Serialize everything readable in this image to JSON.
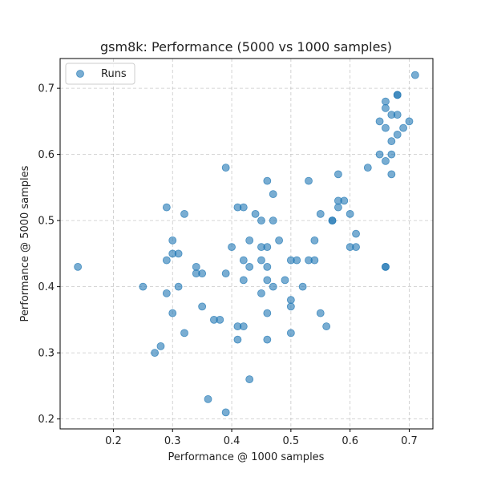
{
  "chart_data": {
    "type": "scatter",
    "title": "gsm8k: Performance (5000 vs 1000 samples)",
    "xlabel": "Performance @ 1000 samples",
    "ylabel": "Performance @ 5000 samples",
    "xlim": [
      0.11,
      0.74
    ],
    "ylim": [
      0.185,
      0.745
    ],
    "xticks": [
      0.2,
      0.3,
      0.4,
      0.5,
      0.6,
      0.7
    ],
    "yticks": [
      0.2,
      0.3,
      0.4,
      0.5,
      0.6,
      0.7
    ],
    "xtick_labels": [
      "0.2",
      "0.3",
      "0.4",
      "0.5",
      "0.6",
      "0.7"
    ],
    "ytick_labels": [
      "0.2",
      "0.3",
      "0.4",
      "0.5",
      "0.6",
      "0.7"
    ],
    "grid": true,
    "legend": {
      "position": "top-left",
      "entries": [
        "Runs"
      ]
    },
    "marker_color": "#1f77b4",
    "series": [
      {
        "name": "Runs",
        "points": [
          [
            0.14,
            0.43
          ],
          [
            0.25,
            0.4
          ],
          [
            0.27,
            0.3
          ],
          [
            0.28,
            0.31
          ],
          [
            0.29,
            0.52
          ],
          [
            0.29,
            0.44
          ],
          [
            0.29,
            0.39
          ],
          [
            0.3,
            0.47
          ],
          [
            0.3,
            0.45
          ],
          [
            0.3,
            0.36
          ],
          [
            0.31,
            0.45
          ],
          [
            0.31,
            0.4
          ],
          [
            0.32,
            0.51
          ],
          [
            0.32,
            0.33
          ],
          [
            0.34,
            0.43
          ],
          [
            0.34,
            0.42
          ],
          [
            0.35,
            0.42
          ],
          [
            0.35,
            0.37
          ],
          [
            0.36,
            0.23
          ],
          [
            0.37,
            0.35
          ],
          [
            0.38,
            0.35
          ],
          [
            0.39,
            0.58
          ],
          [
            0.39,
            0.42
          ],
          [
            0.39,
            0.21
          ],
          [
            0.4,
            0.46
          ],
          [
            0.41,
            0.52
          ],
          [
            0.41,
            0.34
          ],
          [
            0.41,
            0.32
          ],
          [
            0.42,
            0.52
          ],
          [
            0.42,
            0.44
          ],
          [
            0.42,
            0.41
          ],
          [
            0.42,
            0.34
          ],
          [
            0.43,
            0.47
          ],
          [
            0.43,
            0.43
          ],
          [
            0.43,
            0.26
          ],
          [
            0.44,
            0.51
          ],
          [
            0.45,
            0.5
          ],
          [
            0.45,
            0.46
          ],
          [
            0.45,
            0.44
          ],
          [
            0.45,
            0.39
          ],
          [
            0.46,
            0.56
          ],
          [
            0.46,
            0.46
          ],
          [
            0.46,
            0.43
          ],
          [
            0.46,
            0.41
          ],
          [
            0.46,
            0.36
          ],
          [
            0.46,
            0.32
          ],
          [
            0.47,
            0.54
          ],
          [
            0.47,
            0.5
          ],
          [
            0.47,
            0.4
          ],
          [
            0.48,
            0.47
          ],
          [
            0.49,
            0.41
          ],
          [
            0.5,
            0.44
          ],
          [
            0.5,
            0.38
          ],
          [
            0.5,
            0.37
          ],
          [
            0.5,
            0.33
          ],
          [
            0.51,
            0.44
          ],
          [
            0.52,
            0.4
          ],
          [
            0.53,
            0.56
          ],
          [
            0.53,
            0.44
          ],
          [
            0.54,
            0.47
          ],
          [
            0.54,
            0.44
          ],
          [
            0.55,
            0.51
          ],
          [
            0.55,
            0.36
          ],
          [
            0.56,
            0.34
          ],
          [
            0.57,
            0.5
          ],
          [
            0.57,
            0.5
          ],
          [
            0.58,
            0.57
          ],
          [
            0.58,
            0.53
          ],
          [
            0.58,
            0.52
          ],
          [
            0.59,
            0.53
          ],
          [
            0.6,
            0.51
          ],
          [
            0.6,
            0.46
          ],
          [
            0.61,
            0.48
          ],
          [
            0.61,
            0.46
          ],
          [
            0.63,
            0.58
          ],
          [
            0.65,
            0.65
          ],
          [
            0.65,
            0.6
          ],
          [
            0.66,
            0.68
          ],
          [
            0.66,
            0.67
          ],
          [
            0.66,
            0.64
          ],
          [
            0.66,
            0.59
          ],
          [
            0.66,
            0.43
          ],
          [
            0.66,
            0.43
          ],
          [
            0.67,
            0.66
          ],
          [
            0.67,
            0.62
          ],
          [
            0.67,
            0.6
          ],
          [
            0.67,
            0.57
          ],
          [
            0.68,
            0.69
          ],
          [
            0.68,
            0.69
          ],
          [
            0.68,
            0.66
          ],
          [
            0.68,
            0.63
          ],
          [
            0.69,
            0.64
          ],
          [
            0.7,
            0.65
          ],
          [
            0.71,
            0.72
          ]
        ]
      }
    ]
  }
}
